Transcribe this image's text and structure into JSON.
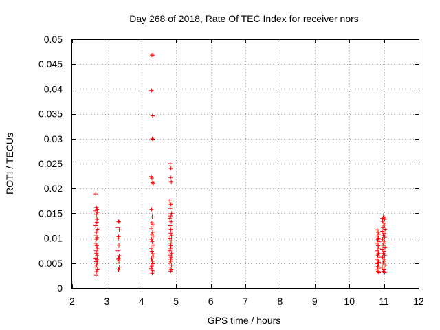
{
  "chart_data": {
    "type": "scatter",
    "title": "Day 268 of 2018, Rate Of TEC Index for receiver nors",
    "xlabel": "GPS time / hours",
    "ylabel": "ROTI / TECUs",
    "xlim": [
      2,
      12
    ],
    "ylim": [
      0,
      0.05
    ],
    "xticks": [
      2,
      3,
      4,
      5,
      6,
      7,
      8,
      9,
      10,
      11,
      12
    ],
    "yticks": [
      "0",
      "0.005",
      "0.01",
      "0.015",
      "0.02",
      "0.025",
      "0.03",
      "0.035",
      "0.04",
      "0.045",
      "0.05"
    ],
    "grid": true,
    "marker": "+",
    "color": "#ff0000",
    "series": [
      {
        "name": "ROTI",
        "points": [
          [
            2.68,
            0.0189
          ],
          [
            2.7,
            0.0162
          ],
          [
            2.72,
            0.0158
          ],
          [
            2.68,
            0.0155
          ],
          [
            2.73,
            0.0152
          ],
          [
            2.7,
            0.0148
          ],
          [
            2.69,
            0.0143
          ],
          [
            2.72,
            0.0138
          ],
          [
            2.71,
            0.0132
          ],
          [
            2.68,
            0.0125
          ],
          [
            2.73,
            0.0118
          ],
          [
            2.7,
            0.0112
          ],
          [
            2.69,
            0.0105
          ],
          [
            2.72,
            0.0101
          ],
          [
            2.7,
            0.0098
          ],
          [
            2.68,
            0.009
          ],
          [
            2.71,
            0.0085
          ],
          [
            2.73,
            0.008
          ],
          [
            2.69,
            0.0075
          ],
          [
            2.7,
            0.007
          ],
          [
            2.72,
            0.0065
          ],
          [
            2.68,
            0.006
          ],
          [
            2.71,
            0.0057
          ],
          [
            2.69,
            0.0053
          ],
          [
            2.72,
            0.005
          ],
          [
            2.7,
            0.0046
          ],
          [
            2.68,
            0.0042
          ],
          [
            2.73,
            0.0038
          ],
          [
            2.7,
            0.0033
          ],
          [
            2.69,
            0.0026
          ],
          [
            3.33,
            0.0134
          ],
          [
            3.35,
            0.0133
          ],
          [
            3.32,
            0.0122
          ],
          [
            3.36,
            0.0117
          ],
          [
            3.34,
            0.0103
          ],
          [
            3.33,
            0.0099
          ],
          [
            3.35,
            0.0086
          ],
          [
            3.32,
            0.0075
          ],
          [
            3.36,
            0.0065
          ],
          [
            3.34,
            0.006
          ],
          [
            3.33,
            0.0058
          ],
          [
            3.35,
            0.0055
          ],
          [
            3.32,
            0.005
          ],
          [
            3.36,
            0.0042
          ],
          [
            3.34,
            0.0037
          ],
          [
            4.3,
            0.0468
          ],
          [
            4.33,
            0.0468
          ],
          [
            4.29,
            0.0397
          ],
          [
            4.32,
            0.0346
          ],
          [
            4.31,
            0.03
          ],
          [
            4.33,
            0.0299
          ],
          [
            4.28,
            0.0224
          ],
          [
            4.3,
            0.0221
          ],
          [
            4.32,
            0.0212
          ],
          [
            4.34,
            0.021
          ],
          [
            4.29,
            0.0158
          ],
          [
            4.31,
            0.0143
          ],
          [
            4.3,
            0.0131
          ],
          [
            4.33,
            0.0127
          ],
          [
            4.28,
            0.012
          ],
          [
            4.32,
            0.0112
          ],
          [
            4.3,
            0.0108
          ],
          [
            4.34,
            0.0104
          ],
          [
            4.29,
            0.0098
          ],
          [
            4.31,
            0.0093
          ],
          [
            4.33,
            0.0086
          ],
          [
            4.28,
            0.008
          ],
          [
            4.3,
            0.0074
          ],
          [
            4.32,
            0.0069
          ],
          [
            4.34,
            0.0064
          ],
          [
            4.29,
            0.0059
          ],
          [
            4.31,
            0.0054
          ],
          [
            4.33,
            0.0049
          ],
          [
            4.3,
            0.0044
          ],
          [
            4.28,
            0.0039
          ],
          [
            4.32,
            0.0035
          ],
          [
            4.31,
            0.003
          ],
          [
            4.83,
            0.025
          ],
          [
            4.85,
            0.024
          ],
          [
            4.84,
            0.0222
          ],
          [
            4.86,
            0.0213
          ],
          [
            4.82,
            0.0175
          ],
          [
            4.85,
            0.0168
          ],
          [
            4.83,
            0.016
          ],
          [
            4.87,
            0.015
          ],
          [
            4.84,
            0.0145
          ],
          [
            4.82,
            0.014
          ],
          [
            4.86,
            0.0133
          ],
          [
            4.83,
            0.0125
          ],
          [
            4.85,
            0.0118
          ],
          [
            4.84,
            0.011
          ],
          [
            4.87,
            0.0105
          ],
          [
            4.82,
            0.01
          ],
          [
            4.86,
            0.0095
          ],
          [
            4.83,
            0.009
          ],
          [
            4.85,
            0.0085
          ],
          [
            4.84,
            0.008
          ],
          [
            4.82,
            0.0075
          ],
          [
            4.87,
            0.007
          ],
          [
            4.83,
            0.0066
          ],
          [
            4.86,
            0.0062
          ],
          [
            4.84,
            0.0058
          ],
          [
            4.85,
            0.0054
          ],
          [
            4.82,
            0.005
          ],
          [
            4.87,
            0.0046
          ],
          [
            4.83,
            0.0042
          ],
          [
            4.86,
            0.0038
          ],
          [
            4.84,
            0.0034
          ],
          [
            10.8,
            0.0117
          ],
          [
            10.83,
            0.0112
          ],
          [
            10.85,
            0.0108
          ],
          [
            10.81,
            0.0104
          ],
          [
            10.84,
            0.01
          ],
          [
            10.82,
            0.0097
          ],
          [
            10.86,
            0.0093
          ],
          [
            10.8,
            0.009
          ],
          [
            10.83,
            0.0085
          ],
          [
            10.85,
            0.008
          ],
          [
            10.81,
            0.0075
          ],
          [
            10.84,
            0.007
          ],
          [
            10.82,
            0.0066
          ],
          [
            10.86,
            0.0062
          ],
          [
            10.8,
            0.0058
          ],
          [
            10.83,
            0.0055
          ],
          [
            10.85,
            0.0052
          ],
          [
            10.81,
            0.0049
          ],
          [
            10.84,
            0.0046
          ],
          [
            10.82,
            0.0043
          ],
          [
            10.86,
            0.004
          ],
          [
            10.8,
            0.0037
          ],
          [
            10.83,
            0.0034
          ],
          [
            10.85,
            0.0031
          ],
          [
            10.95,
            0.014
          ],
          [
            10.98,
            0.0143
          ],
          [
            11.0,
            0.0141
          ],
          [
            11.02,
            0.0138
          ],
          [
            10.96,
            0.0134
          ],
          [
            10.99,
            0.013
          ],
          [
            11.01,
            0.0126
          ],
          [
            10.97,
            0.0122
          ],
          [
            11.03,
            0.0118
          ],
          [
            10.95,
            0.0114
          ],
          [
            11.0,
            0.011
          ],
          [
            10.98,
            0.0106
          ],
          [
            11.02,
            0.0102
          ],
          [
            10.96,
            0.0098
          ],
          [
            11.01,
            0.0094
          ],
          [
            10.99,
            0.009
          ],
          [
            10.97,
            0.0086
          ],
          [
            11.03,
            0.0082
          ],
          [
            10.95,
            0.0078
          ],
          [
            11.0,
            0.0074
          ],
          [
            10.98,
            0.007
          ],
          [
            11.02,
            0.0066
          ],
          [
            10.96,
            0.0062
          ],
          [
            11.01,
            0.0058
          ],
          [
            10.99,
            0.0054
          ],
          [
            10.97,
            0.005
          ],
          [
            11.03,
            0.0046
          ],
          [
            10.95,
            0.0042
          ],
          [
            11.0,
            0.0038
          ],
          [
            10.98,
            0.0034
          ],
          [
            11.02,
            0.0031
          ]
        ]
      }
    ]
  }
}
